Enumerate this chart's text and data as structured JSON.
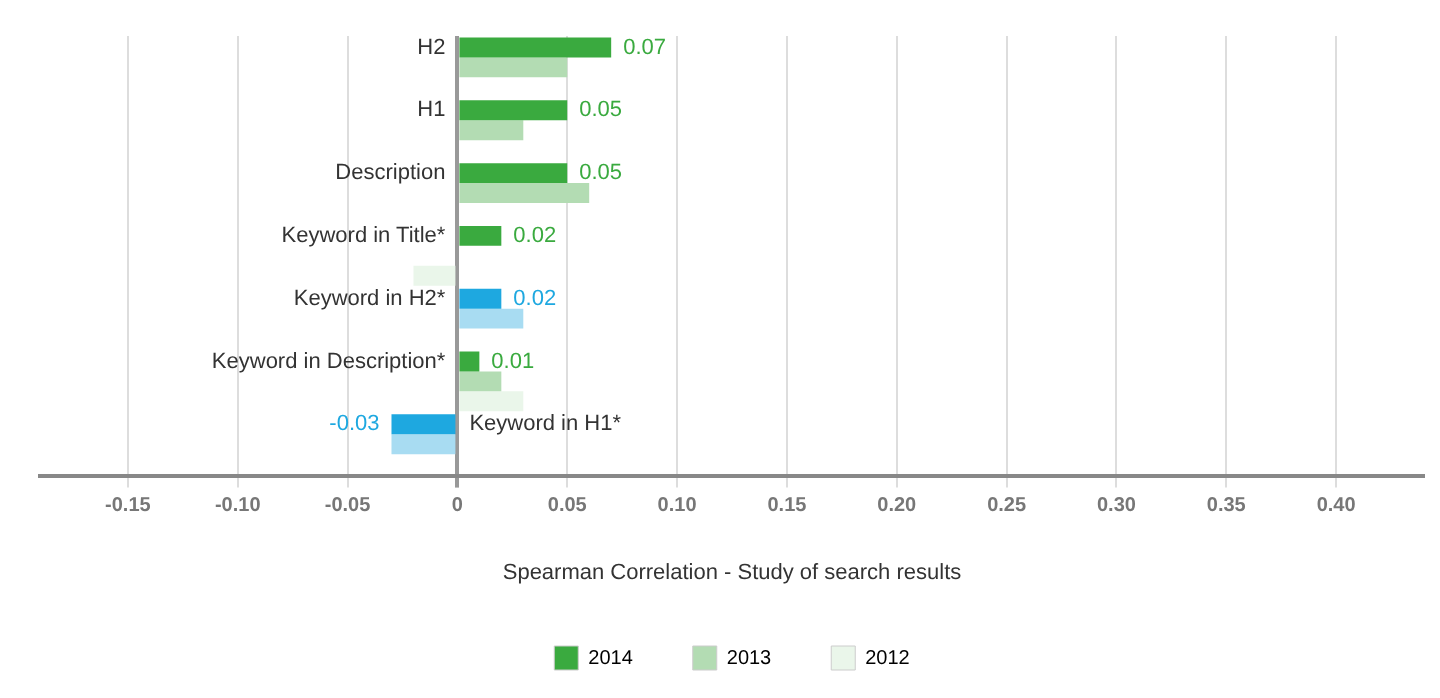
{
  "chart_data": {
    "type": "bar",
    "orientation": "horizontal",
    "xlabel": "Spearman Correlation - Study of search results",
    "categories": [
      "H2",
      "H1",
      "Description",
      "Keyword in Title*",
      "Keyword in H2*",
      "Keyword in Description*",
      "Keyword in H1*"
    ],
    "series": [
      {
        "name": "2014",
        "color": "#3aaa3f",
        "values": [
          0.07,
          0.05,
          0.05,
          0.02,
          0.02,
          0.01,
          -0.03
        ],
        "colors": [
          "#3aaa3f",
          "#3aaa3f",
          "#3aaa3f",
          "#3aaa3f",
          "#1ea8e0",
          "#3aaa3f",
          "#1ea8e0"
        ],
        "value_labels": [
          "0.07",
          "0.05",
          "0.05",
          "0.02",
          "0.02",
          "0.01",
          "-0.03"
        ]
      },
      {
        "name": "2013",
        "color": "#b3dcb3",
        "values": [
          0.05,
          0.03,
          0.06,
          null,
          0.03,
          0.02,
          -0.03
        ],
        "colors": [
          "#b3dcb3",
          "#b3dcb3",
          "#b3dcb3",
          "#b3dcb3",
          "#a8dcf2",
          "#b3dcb3",
          "#a8dcf2"
        ]
      },
      {
        "name": "2012",
        "color": "#eaf6ea",
        "values": [
          null,
          null,
          null,
          -0.02,
          null,
          0.03,
          null
        ],
        "colors": [
          "#eaf6ea",
          "#eaf6ea",
          "#eaf6ea",
          "#eaf6ea",
          "#e6f5fb",
          "#eaf6ea",
          "#e6f5fb"
        ]
      }
    ],
    "xlim": [
      -0.19,
      0.44
    ],
    "xticks": [
      {
        "value": -0.15,
        "label": "-0.15"
      },
      {
        "value": -0.1,
        "label": "-0.10"
      },
      {
        "value": -0.05,
        "label": "-0.05"
      },
      0,
      {
        "value": 0.05,
        "label": "0.05"
      },
      {
        "value": 0.1,
        "label": "0.10"
      },
      {
        "value": 0.15,
        "label": "0.15"
      },
      {
        "value": 0.2,
        "label": "0.20"
      },
      {
        "value": 0.25,
        "label": "0.25"
      },
      {
        "value": 0.3,
        "label": "0.30"
      },
      {
        "value": 0.35,
        "label": "0.35"
      },
      {
        "value": 0.4,
        "label": "0.40"
      }
    ],
    "grid": "x",
    "legend": "bottom",
    "tick_labels": "x"
  }
}
